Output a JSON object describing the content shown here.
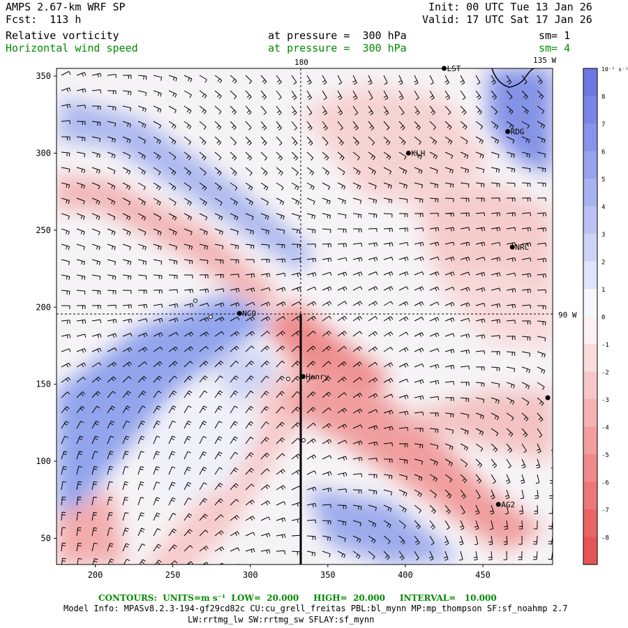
{
  "header": {
    "model": "AMPS 2.67-km WRF SP",
    "forecast": "Fcst:  113 h",
    "init": "Init: 00 UTC Tue 13 Jan 26",
    "valid": "Valid: 17 UTC Sat 17 Jan 26",
    "field1_name": "Relative vorticity",
    "field1_level": "at pressure =  300 hPa",
    "field1_sm": "sm= 1",
    "field2_name": "Horizontal wind speed",
    "field2_level": "at pressure =  300 hPa",
    "field2_sm": "sm= 4"
  },
  "map": {
    "meridian_label": "180",
    "meridian_135_label": "135 W",
    "parallel_label": "90 W",
    "y_ticks": [
      350,
      300,
      250,
      200,
      150,
      100,
      50
    ],
    "x_ticks": [
      200,
      250,
      300,
      350,
      400,
      450
    ],
    "stations": [
      {
        "name": "LST",
        "x": 425,
        "y": 355
      },
      {
        "name": "RDG",
        "x": 466,
        "y": 314
      },
      {
        "name": "KLH",
        "x": 402,
        "y": 300
      },
      {
        "name": "NRC",
        "x": 469,
        "y": 239
      },
      {
        "name": "NCO",
        "x": 293,
        "y": 196
      },
      {
        "name": "Henry",
        "x": 334,
        "y": 155
      },
      {
        "name": "AG2",
        "x": 460,
        "y": 72
      }
    ]
  },
  "colorbar": {
    "unit": "10⁻⁵ s⁻¹",
    "labels": [
      "8",
      "7",
      "6",
      "5",
      "4",
      "3",
      "2",
      "1",
      "0",
      "-1",
      "-2",
      "-3",
      "-4",
      "-5",
      "-6",
      "-7",
      "-8"
    ]
  },
  "footer": {
    "contours": "CONTOURS:  UNITS=m s⁻¹  LOW=  20.000     HIGH=  20.000     INTERVAL=   10.000",
    "model_info": "Model Info: MPASv8.2.3-194-gf29cd82c CU:cu_grell_freitas PBL:bl_mynn MP:mp_thompson SF:sf_noahmp 2.7",
    "model_info2": "LW:rrtmg_lw SW:rrtmg_sw SFLAY:sf_mynn"
  }
}
